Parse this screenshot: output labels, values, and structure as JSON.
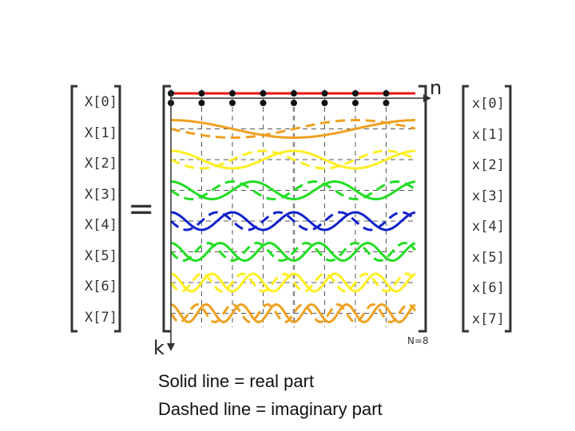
{
  "left_vector": [
    "X[0]",
    "X[1]",
    "X[2]",
    "X[3]",
    "X[4]",
    "X[5]",
    "X[6]",
    "X[7]"
  ],
  "right_vector": [
    "x[0]",
    "x[1]",
    "x[2]",
    "x[3]",
    "x[4]",
    "x[5]",
    "x[6]",
    "x[7]"
  ],
  "equals_sign": "=",
  "n_axis_label": "n",
  "k_axis_label": "k",
  "size_label": "N=8",
  "caption": {
    "line1": "Solid line = real part",
    "line2": "Dashed line = imaginary part"
  },
  "colors": {
    "k0": "#ee1111",
    "k1": "#f0a020",
    "k2": "#ffee22",
    "k3": "#22dd22",
    "k4": "#1122cc",
    "k5": "#22dd22",
    "k6": "#ffee22",
    "k7": "#f0a020"
  },
  "N": 8
}
